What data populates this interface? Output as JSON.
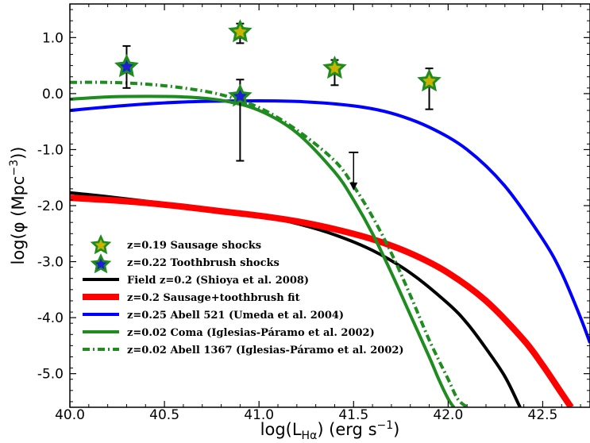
{
  "chart_data": {
    "type": "line",
    "title": "",
    "xlabel": "log(L<sub>Hα</sub>) (erg s<sup>−1</sup>)",
    "ylabel": "log(φ (Mpc<sup>−3</sup>))",
    "xlim": [
      40.0,
      42.75
    ],
    "ylim": [
      -5.6,
      1.6
    ],
    "xticks": [
      40.0,
      40.5,
      41.0,
      41.5,
      42.0,
      42.5
    ],
    "xtick_labels": [
      "40.0",
      "40.5",
      "41.0",
      "41.5",
      "42.0",
      "42.5"
    ],
    "yticks": [
      1.0,
      0.0,
      -1.0,
      -2.0,
      -3.0,
      -4.0,
      -5.0
    ],
    "ytick_labels": [
      "1.0",
      "0.0",
      "-1.0",
      "-2.0",
      "-3.0",
      "-4.0",
      "-5.0"
    ],
    "grid": false,
    "legend_position": "bottom-left",
    "points": [
      {
        "name": "z=0.19 Sausage shocks",
        "outer_color": "#1e8c1e",
        "inner_color": "#c8b400",
        "data": [
          {
            "x": 40.3,
            "y": 0.48,
            "ylo": 0.1,
            "yhi": 0.85
          },
          {
            "x": 40.9,
            "y": 1.1,
            "ylo": 0.9,
            "yhi": 1.25
          },
          {
            "x": 41.4,
            "y": 0.45,
            "ylo": 0.15,
            "yhi": 0.6
          },
          {
            "x": 41.9,
            "y": 0.22,
            "ylo": -0.28,
            "yhi": 0.45
          }
        ]
      },
      {
        "name": "z=0.22 Toothbrush shocks",
        "outer_color": "#1e8c1e",
        "inner_color": "#1e1ed2",
        "data": [
          {
            "x": 40.3,
            "y": 0.48
          },
          {
            "x": 40.9,
            "y": -0.05,
            "ylo": -1.2,
            "yhi": 0.25
          }
        ]
      }
    ],
    "upper_limits": [
      {
        "x": 41.5,
        "ytop": -1.05,
        "ybottom": -1.7
      }
    ],
    "series": [
      {
        "name": "Field z=0.2 (Shioya et al. 2008)",
        "color": "#000000",
        "style": "solid",
        "x": [
          40.0,
          40.2,
          40.4,
          40.6,
          40.8,
          41.0,
          41.2,
          41.4,
          41.6,
          41.8,
          42.0,
          42.1,
          42.2,
          42.3,
          42.38
        ],
        "y": [
          -1.77,
          -1.84,
          -1.92,
          -2.0,
          -2.08,
          -2.18,
          -2.32,
          -2.52,
          -2.8,
          -3.2,
          -3.75,
          -4.1,
          -4.55,
          -5.05,
          -5.6
        ]
      },
      {
        "name": "z=0.2 Sausage+toothbrush fit",
        "color": "#ff0000",
        "style": "thick",
        "x": [
          40.0,
          40.2,
          40.4,
          40.6,
          40.8,
          41.0,
          41.2,
          41.4,
          41.6,
          41.8,
          42.0,
          42.2,
          42.4,
          42.5,
          42.6,
          42.65
        ],
        "y": [
          -1.86,
          -1.9,
          -1.95,
          -2.02,
          -2.1,
          -2.18,
          -2.28,
          -2.42,
          -2.6,
          -2.85,
          -3.2,
          -3.7,
          -4.4,
          -4.85,
          -5.35,
          -5.6
        ]
      },
      {
        "name": "z=0.25 Abell 521 (Umeda et al. 2004)",
        "color": "#0000ff",
        "style": "solid",
        "x": [
          40.0,
          40.3,
          40.6,
          40.9,
          41.2,
          41.5,
          41.7,
          41.9,
          42.1,
          42.3,
          42.5,
          42.6,
          42.7,
          42.75
        ],
        "y": [
          -0.3,
          -0.21,
          -0.15,
          -0.13,
          -0.14,
          -0.22,
          -0.35,
          -0.6,
          -1.0,
          -1.65,
          -2.6,
          -3.2,
          -4.0,
          -4.45
        ]
      },
      {
        "name": "z=0.02 Coma (Iglesias-Páramo et al. 2002)",
        "color": "#1e8c1e",
        "style": "solid",
        "x": [
          40.0,
          40.2,
          40.4,
          40.6,
          40.8,
          41.0,
          41.2,
          41.4,
          41.5,
          41.6,
          41.7,
          41.8,
          41.9,
          41.95,
          42.0,
          42.03
        ],
        "y": [
          -0.1,
          -0.06,
          -0.05,
          -0.06,
          -0.12,
          -0.3,
          -0.7,
          -1.4,
          -1.9,
          -2.5,
          -3.2,
          -3.95,
          -4.7,
          -5.1,
          -5.45,
          -5.6
        ]
      },
      {
        "name": "z=0.02 Abell 1367 (Iglesias-Páramo et al. 2002)",
        "color": "#1e8c1e",
        "style": "dashdot",
        "x": [
          40.0,
          40.2,
          40.4,
          40.6,
          40.8,
          41.0,
          41.2,
          41.4,
          41.5,
          41.6,
          41.7,
          41.8,
          41.9,
          42.0,
          42.05,
          42.1
        ],
        "y": [
          0.2,
          0.2,
          0.17,
          0.1,
          -0.02,
          -0.25,
          -0.65,
          -1.2,
          -1.65,
          -2.2,
          -2.85,
          -3.6,
          -4.4,
          -5.1,
          -5.45,
          -5.6
        ]
      }
    ],
    "legend": [
      {
        "label": "z=0.19 Sausage shocks",
        "marker": "star",
        "outer_color": "#1e8c1e",
        "inner_color": "#c8b400"
      },
      {
        "label": "z=0.22 Toothbrush shocks",
        "marker": "star",
        "outer_color": "#1e8c1e",
        "inner_color": "#1e1ed2"
      },
      {
        "label": "Field z=0.2 (Shioya et al. 2008)",
        "marker": "line",
        "color": "#000000",
        "style": "solid"
      },
      {
        "label": "z=0.2 Sausage+toothbrush fit",
        "marker": "line",
        "color": "#ff0000",
        "style": "thick"
      },
      {
        "label": "z=0.25 Abell 521 (Umeda et al. 2004)",
        "marker": "line",
        "color": "#0000ff",
        "style": "solid"
      },
      {
        "label": "z=0.02 Coma (Iglesias-Páramo et al. 2002)",
        "marker": "line",
        "color": "#1e8c1e",
        "style": "solid"
      },
      {
        "label": "z=0.02 Abell 1367 (Iglesias-Páramo et al. 2002)",
        "marker": "line",
        "color": "#1e8c1e",
        "style": "dashdot"
      }
    ]
  }
}
